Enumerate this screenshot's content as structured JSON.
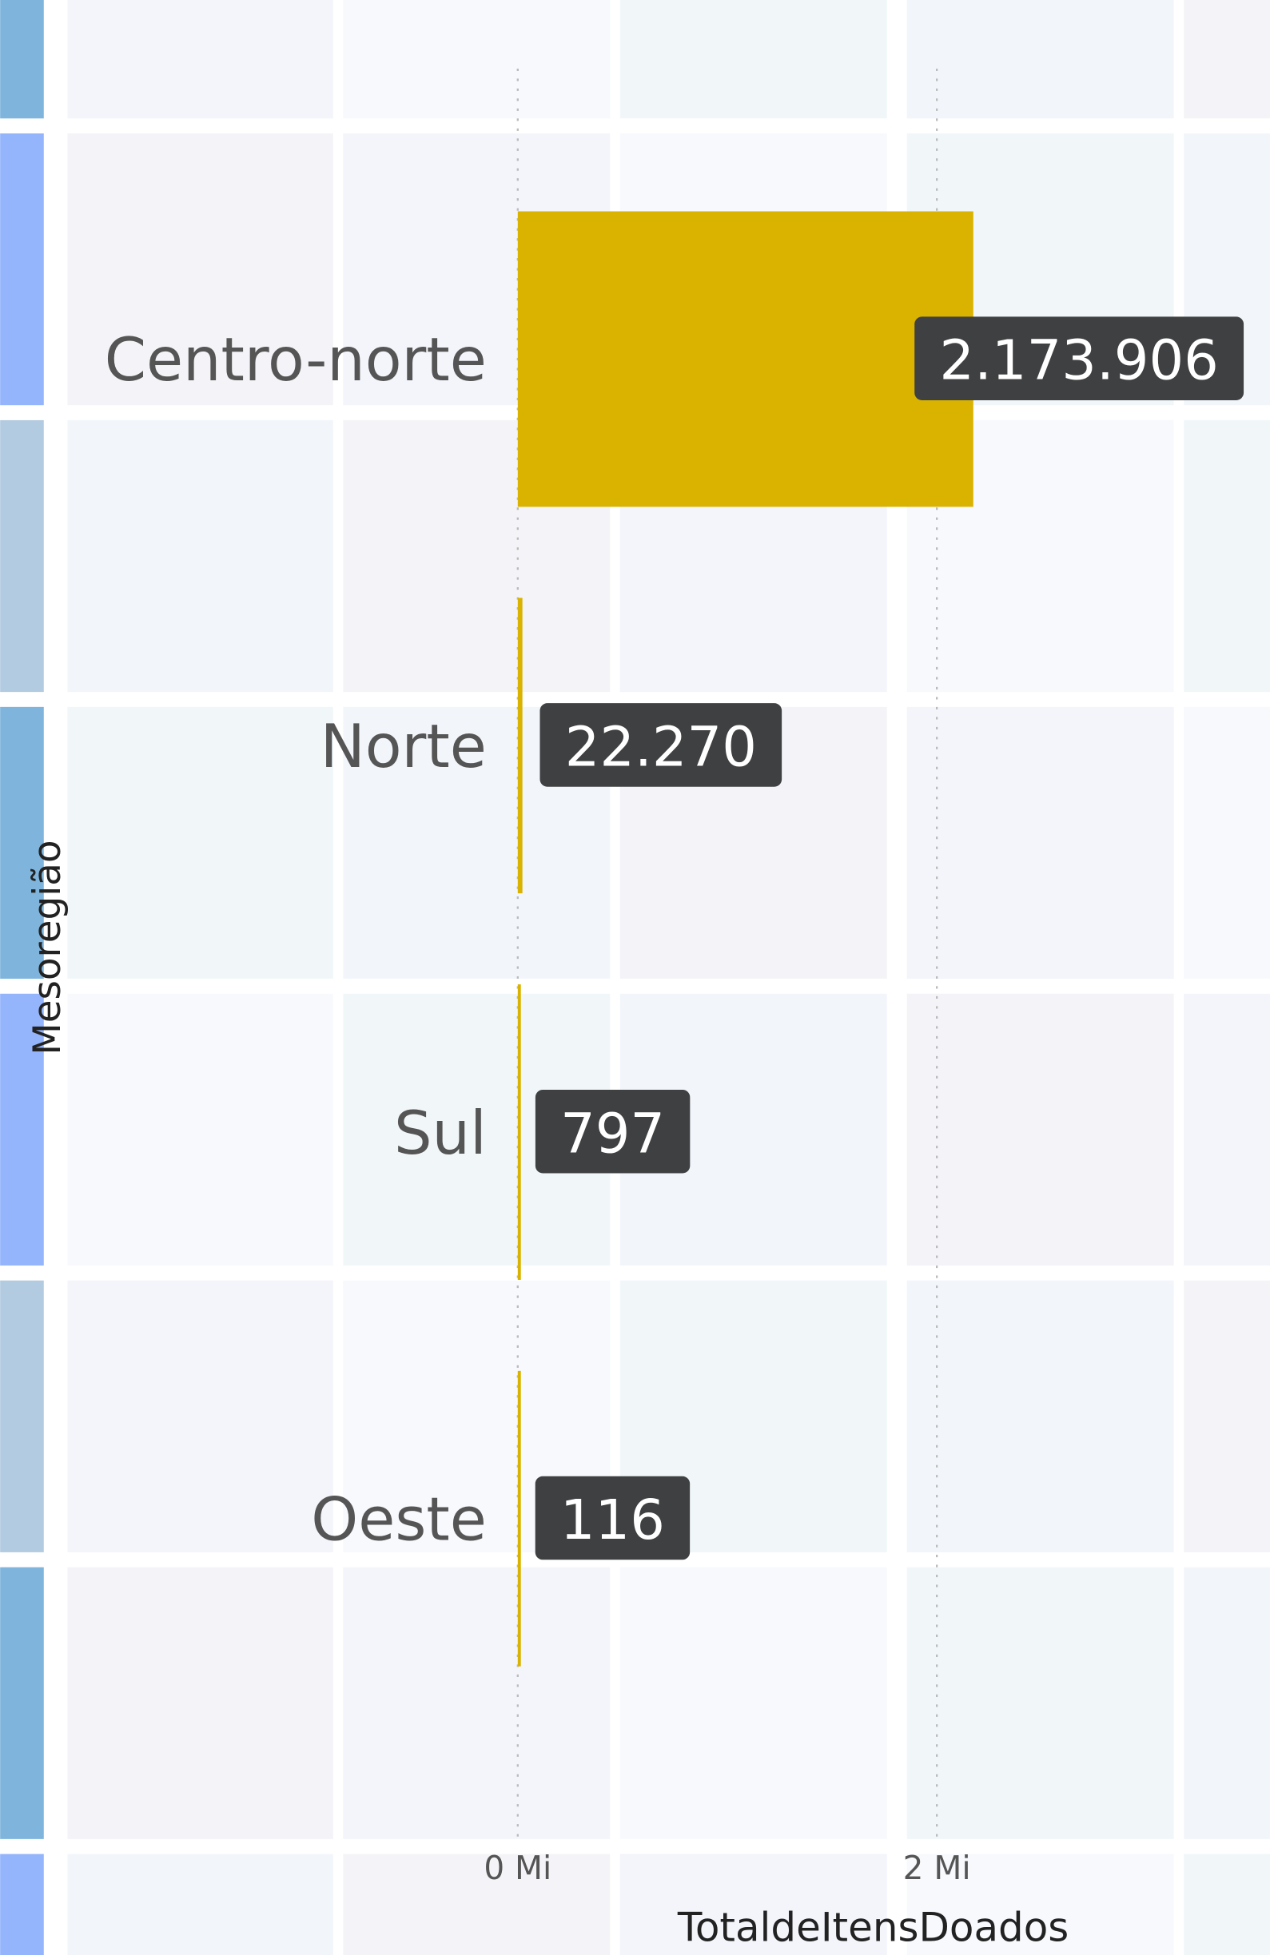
{
  "chart_data": {
    "type": "barh",
    "x_label": "TotaldeItensDoados",
    "y_label": "Mesoregião",
    "categories": [
      "Centro-norte",
      "Norte",
      "Sul",
      "Oeste"
    ],
    "values": [
      2173906,
      22270,
      797,
      116
    ],
    "value_labels": [
      "2.173.906",
      "22.270",
      "797",
      "116"
    ],
    "color": "#d9b300",
    "xlim": [
      0,
      3500000
    ],
    "xticks": [
      {
        "value": 0,
        "label": "0 Mi"
      },
      {
        "value": 2000000,
        "label": "2 Mi"
      }
    ],
    "grid": true
  }
}
